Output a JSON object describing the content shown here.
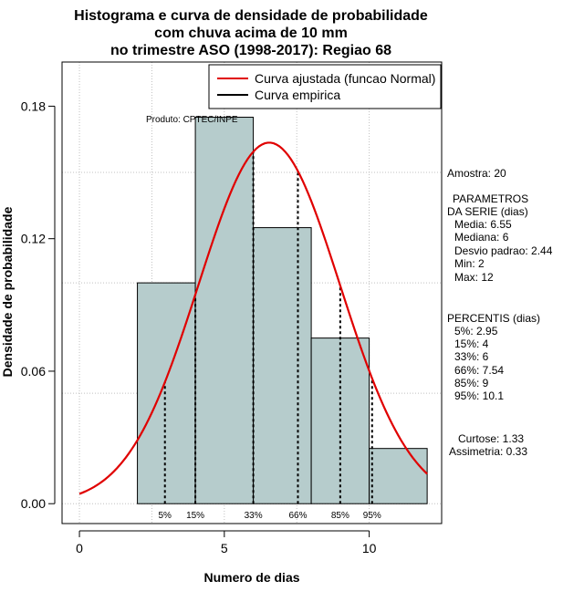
{
  "chart_data": {
    "type": "bar",
    "title_lines": [
      "Histograma e curva de densidade de probabilidade",
      "com chuva acima de 10 mm",
      "no trimestre ASO (1998-2017): Regiao 68"
    ],
    "xlabel": "Numero de dias",
    "ylabel": "Densidade de probabilidade",
    "xlim": [
      -0.6,
      12.5
    ],
    "ylim": [
      -0.009,
      0.2
    ],
    "x_ticks": [
      0,
      5,
      10
    ],
    "y_ticks": [
      0.0,
      0.06,
      0.12,
      0.18
    ],
    "y_tick_labels": [
      "0.00",
      "0.06",
      "0.12",
      "0.18"
    ],
    "grid": true,
    "bar_color": "#b6cccc",
    "curve_color": "#e00000",
    "bins": [
      {
        "start": 2,
        "end": 4,
        "density": 0.1
      },
      {
        "start": 4,
        "end": 6,
        "density": 0.175
      },
      {
        "start": 6,
        "end": 8,
        "density": 0.125
      },
      {
        "start": 8,
        "end": 10,
        "density": 0.075
      },
      {
        "start": 10,
        "end": 12,
        "density": 0.025
      }
    ],
    "normal_fit": {
      "mean": 6.55,
      "sd": 2.44,
      "x_range": [
        0,
        12
      ]
    },
    "percentiles": [
      {
        "label": "5%",
        "value": 2.95
      },
      {
        "label": "15%",
        "value": 4
      },
      {
        "label": "33%",
        "value": 6
      },
      {
        "label": "66%",
        "value": 7.54
      },
      {
        "label": "85%",
        "value": 9
      },
      {
        "label": "95%",
        "value": 10.1
      }
    ],
    "legend": {
      "position": "top-right",
      "entries": [
        {
          "label": "Curva ajustada (funcao Normal)",
          "color": "#e00000"
        },
        {
          "label": "Curva empirica",
          "color": "#000000"
        }
      ]
    },
    "annotation": "Produto: CPTEC/INPE"
  },
  "stats_panel": {
    "sample": "Amostra: 20",
    "params_header_1": "PARAMETROS",
    "params_header_2": "DA SERIE (dias)",
    "params": [
      "Media: 6.55",
      "Mediana: 6",
      "Desvio padrao: 2.44",
      "Min: 2",
      "Max: 12"
    ],
    "percentis_header": "PERCENTIS (dias)",
    "percentis": [
      "5%: 2.95",
      "15%: 4",
      "33%: 6",
      "66%: 7.54",
      "85%: 9",
      "95%: 10.1"
    ],
    "curtose": "Curtose: 1.33",
    "assimetria": "Assimetria: 0.33"
  }
}
